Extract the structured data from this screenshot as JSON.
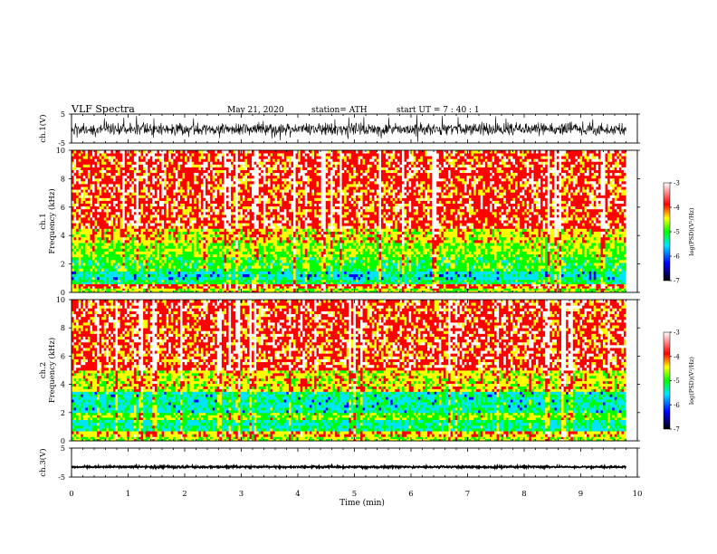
{
  "header": {
    "title": "VLF  Spectra",
    "date": "May 21, 2020",
    "station": "station= ATH",
    "start": "start  UT  =   7  : 40 : 1"
  },
  "chart_data": [
    {
      "type": "line",
      "panel": "ch1-waveform",
      "ylabel": "ch.1(V)",
      "ylim": [
        -5,
        5
      ],
      "yticks": [
        "5",
        "-5"
      ],
      "x_range_min": [
        0,
        9.8
      ],
      "series_description_values": {
        "center": -0.2,
        "amplitude_typical": 1.8,
        "amplitude_peak": 5
      },
      "colors": {
        "line": "#000000"
      }
    },
    {
      "type": "heatmap",
      "panel": "ch1-spectrogram",
      "ylabel": "ch.1\nFrequency  (kHz)",
      "ylabel_lines": [
        "ch.1",
        "Frequency  (kHz)"
      ],
      "ylim": [
        0,
        10
      ],
      "yticks": [
        "0",
        "2",
        "4",
        "6",
        "8",
        "10"
      ],
      "x_range_min": [
        0,
        9.8
      ],
      "bands": [
        {
          "f_from": 0,
          "f_to": 0.3,
          "level": -4.6
        },
        {
          "f_from": 0.3,
          "f_to": 0.6,
          "level": -3.8
        },
        {
          "f_from": 0.6,
          "f_to": 0.9,
          "level": -5.2
        },
        {
          "f_from": 0.9,
          "f_to": 1.5,
          "level": -5.6
        },
        {
          "f_from": 1.5,
          "f_to": 2.5,
          "level": -5.0
        },
        {
          "f_from": 2.5,
          "f_to": 3.5,
          "level": -4.7
        },
        {
          "f_from": 3.5,
          "f_to": 4.5,
          "level": -4.3
        },
        {
          "f_from": 4.5,
          "f_to": 10,
          "level": -3.7
        }
      ],
      "colorbar": {
        "label": "log(PSD)(V²/Hz)",
        "ticks": [
          "-3",
          "-4",
          "-5",
          "-6",
          "-7"
        ],
        "range": [
          -7,
          -3
        ]
      }
    },
    {
      "type": "heatmap",
      "panel": "ch2-spectrogram",
      "ylabel": "ch.2\nFrequency  (kHz)",
      "ylabel_lines": [
        "ch.2",
        "Frequency  (kHz)"
      ],
      "ylim": [
        0,
        10
      ],
      "yticks": [
        "0",
        "2",
        "4",
        "6",
        "8",
        "10"
      ],
      "x_range_min": [
        0,
        9.8
      ],
      "bands": [
        {
          "f_from": 0,
          "f_to": 0.3,
          "level": -4.6
        },
        {
          "f_from": 0.3,
          "f_to": 0.7,
          "level": -4.2
        },
        {
          "f_from": 0.7,
          "f_to": 1.5,
          "level": -5.4
        },
        {
          "f_from": 1.5,
          "f_to": 2.0,
          "level": -4.8
        },
        {
          "f_from": 2.0,
          "f_to": 3.5,
          "level": -5.5
        },
        {
          "f_from": 3.5,
          "f_to": 5.0,
          "level": -4.4
        },
        {
          "f_from": 5.0,
          "f_to": 10,
          "level": -3.7
        }
      ],
      "colorbar": {
        "label": "log(PSD)(V²/Hz)",
        "ticks": [
          "-3",
          "-4",
          "-5",
          "-6",
          "-7"
        ],
        "range": [
          -7,
          -3
        ]
      }
    },
    {
      "type": "line",
      "panel": "ch3-waveform",
      "ylabel": "ch.3(V)",
      "ylim": [
        -5,
        5
      ],
      "yticks": [
        "5",
        "-5"
      ],
      "x_range_min": [
        0,
        9.8
      ],
      "series_description_values": {
        "center": -1.5,
        "amplitude_typical": 0.3
      },
      "colors": {
        "line": "#000000"
      }
    }
  ],
  "xaxis": {
    "label": "Time  (min)",
    "ticks": [
      "0",
      "1",
      "2",
      "3",
      "4",
      "5",
      "6",
      "7",
      "8",
      "9",
      "10"
    ],
    "xlim": [
      0,
      10
    ]
  },
  "colormap": [
    "#000000",
    "#0000ff",
    "#00e5ff",
    "#00ff00",
    "#ffff00",
    "#ff0000",
    "#ffffff"
  ]
}
